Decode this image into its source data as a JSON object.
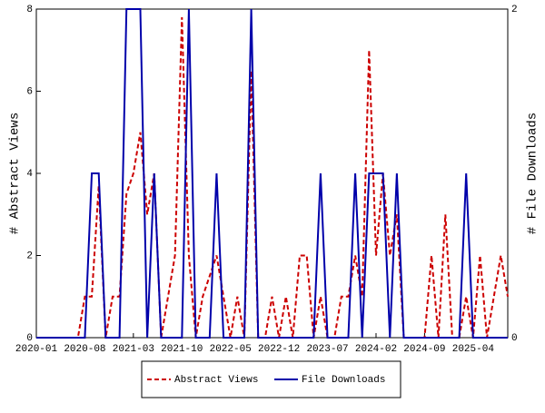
{
  "chart_data": {
    "type": "line",
    "categories": [
      "2020-01",
      null,
      null,
      null,
      null,
      null,
      null,
      "2020-08",
      null,
      null,
      null,
      null,
      null,
      null,
      "2021-03",
      null,
      null,
      null,
      null,
      null,
      null,
      "2021-10",
      null,
      null,
      null,
      null,
      null,
      null,
      "2022-05",
      null,
      null,
      null,
      null,
      null,
      null,
      "2022-12",
      null,
      null,
      null,
      null,
      null,
      null,
      "2023-07",
      null,
      null,
      null,
      null,
      null,
      null,
      "2024-02",
      null,
      null,
      null,
      null,
      null,
      null,
      "2024-09",
      null,
      null,
      null,
      null,
      null,
      null,
      "2025-04",
      null,
      null,
      null,
      null,
      null
    ],
    "ylabel": "# Abstract Views",
    "y2label": "# File Downloads",
    "ylim": [
      0,
      8
    ],
    "yticks": [
      0,
      2,
      4,
      6,
      8
    ],
    "y2lim": [
      0,
      2
    ],
    "y2ticks": [
      0,
      2
    ],
    "series": [
      {
        "name": "Abstract Views",
        "color": "#cc0000",
        "dash": true,
        "values": [
          0,
          0,
          0,
          0,
          0,
          0,
          0,
          1,
          1,
          3.7,
          0,
          1,
          1,
          3.5,
          4,
          5,
          3,
          4,
          0,
          1,
          2,
          7.8,
          2,
          0,
          1,
          1.5,
          2,
          1,
          0,
          1,
          0,
          6.5,
          0,
          0,
          1,
          0,
          1,
          0,
          2,
          2,
          0,
          1,
          0,
          0,
          1,
          1,
          2,
          1,
          7,
          2,
          4,
          2,
          3,
          0,
          0,
          0,
          0,
          2,
          0,
          3,
          0,
          0,
          1,
          0,
          2,
          0,
          1,
          2,
          1
        ]
      },
      {
        "name": "File Downloads",
        "color": "#0000aa",
        "axis": "y2",
        "values": [
          0,
          0,
          0,
          0,
          0,
          0,
          0,
          0,
          1,
          1,
          0,
          0,
          0,
          2,
          2,
          2,
          0,
          1,
          0,
          0,
          0,
          0,
          2,
          0,
          0,
          0,
          1,
          0,
          0,
          0,
          0,
          2,
          0,
          0,
          0,
          0,
          0,
          0,
          0,
          0,
          0,
          1,
          0,
          0,
          0,
          0,
          1,
          0,
          1,
          1,
          1,
          0,
          1,
          0,
          0,
          0,
          0,
          0,
          0,
          0,
          0,
          0,
          1,
          0,
          0,
          0,
          0,
          0,
          0
        ]
      }
    ]
  }
}
